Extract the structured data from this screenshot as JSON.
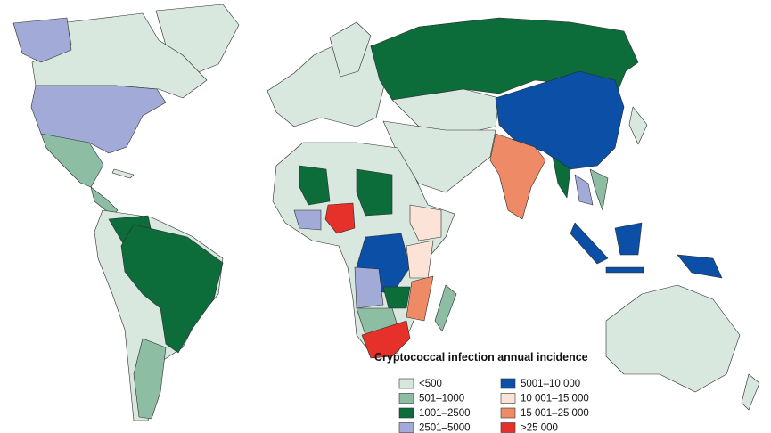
{
  "legend": {
    "title": "Cryptococcal infection annual incidence",
    "items": [
      {
        "label": "<500",
        "color": "#d8e8de"
      },
      {
        "label": "501–1000",
        "color": "#8dbea3"
      },
      {
        "label": "1001–2500",
        "color": "#0d6d3a"
      },
      {
        "label": "2501–5000",
        "color": "#a2abd8"
      },
      {
        "label": "5001–10 000",
        "color": "#0b4fa6"
      },
      {
        "label": "10 001–15 000",
        "color": "#fbe3d7"
      },
      {
        "label": "15 001–25 000",
        "color": "#ef8a66"
      },
      {
        "label": ">25 000",
        "color": "#e5312a"
      }
    ]
  }
}
